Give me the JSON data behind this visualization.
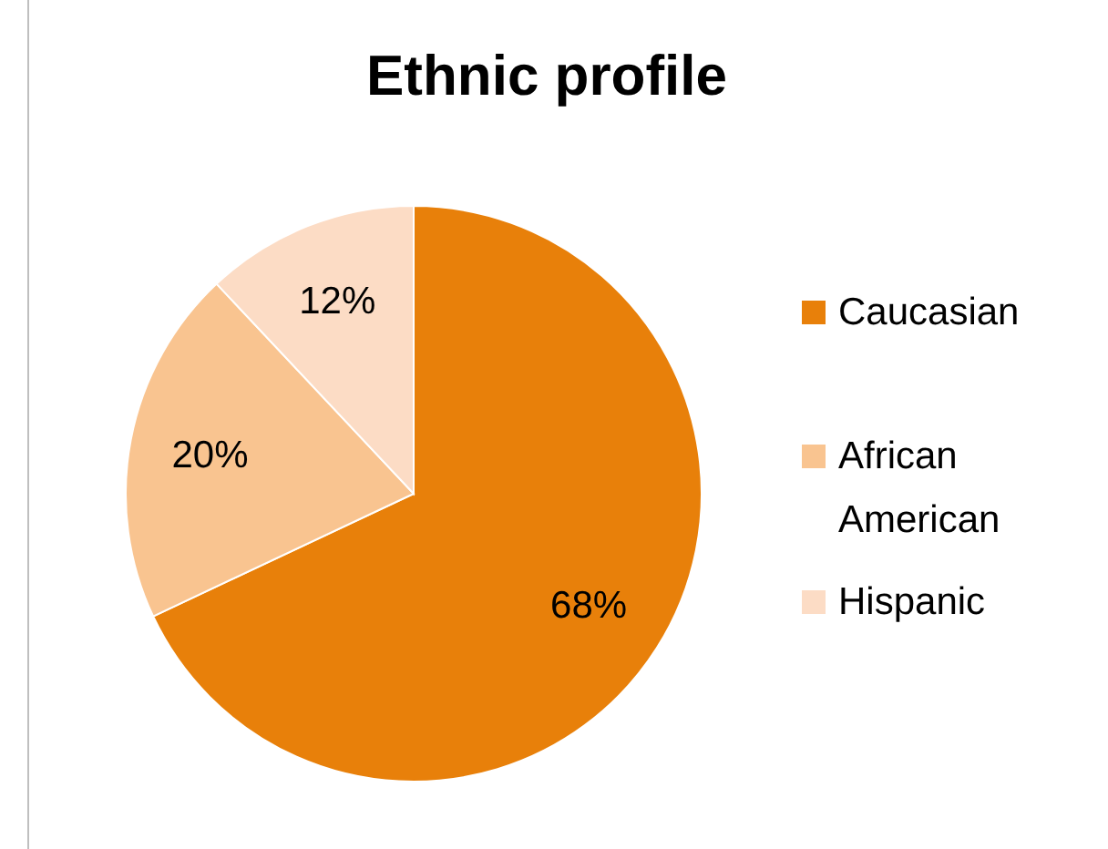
{
  "chart_data": {
    "type": "pie",
    "title": "Ethnic profile",
    "categories": [
      "Caucasian",
      "African American",
      "Hispanic"
    ],
    "values": [
      68,
      20,
      12
    ],
    "colors": [
      "#e8800a",
      "#f9c490",
      "#fcdcc5"
    ],
    "value_labels": [
      "68%",
      "20%",
      "12%"
    ],
    "legend": "right"
  }
}
